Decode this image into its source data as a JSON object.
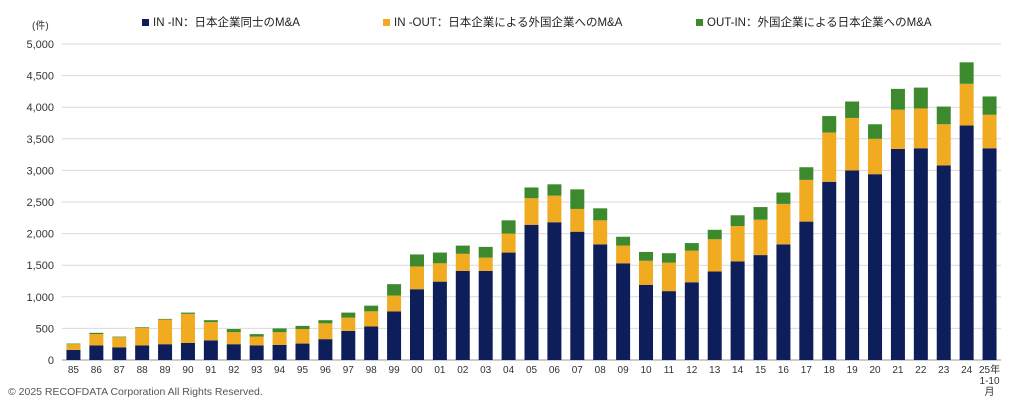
{
  "chart_data": {
    "type": "bar",
    "stacked": true,
    "unit_label": "(件)",
    "categories": [
      "85",
      "86",
      "87",
      "88",
      "89",
      "90",
      "91",
      "92",
      "93",
      "94",
      "95",
      "96",
      "97",
      "98",
      "99",
      "00",
      "01",
      "02",
      "03",
      "04",
      "05",
      "06",
      "07",
      "08",
      "09",
      "10",
      "11",
      "12",
      "13",
      "14",
      "15",
      "16",
      "17",
      "18",
      "19",
      "20",
      "21",
      "22",
      "23",
      "24",
      "25年 1-10 月"
    ],
    "series": [
      {
        "name": "IN -IN：日本企業同士のM&A",
        "color": "#0e1e5b",
        "values": [
          160,
          230,
          200,
          230,
          250,
          270,
          310,
          250,
          230,
          240,
          260,
          330,
          460,
          530,
          770,
          1120,
          1240,
          1410,
          1410,
          1700,
          2140,
          2180,
          2030,
          1830,
          1530,
          1190,
          1090,
          1230,
          1400,
          1560,
          1660,
          1830,
          2190,
          2820,
          3000,
          2940,
          3340,
          3350,
          3080,
          3710,
          3350
        ]
      },
      {
        "name": "IN -OUT：日本企業による外国企業へのM&A",
        "color": "#f0ab21",
        "values": [
          90,
          180,
          160,
          280,
          390,
          460,
          290,
          190,
          140,
          200,
          230,
          250,
          210,
          240,
          250,
          360,
          290,
          270,
          210,
          300,
          420,
          420,
          360,
          380,
          280,
          380,
          450,
          500,
          510,
          560,
          560,
          640,
          660,
          780,
          830,
          560,
          620,
          630,
          650,
          660,
          530
        ]
      },
      {
        "name": "OUT-IN：外国企業による日本企業へのM&A",
        "color": "#3d8a2e",
        "values": [
          10,
          20,
          10,
          10,
          10,
          20,
          30,
          50,
          40,
          60,
          50,
          50,
          80,
          90,
          180,
          190,
          170,
          130,
          170,
          210,
          170,
          180,
          310,
          190,
          140,
          140,
          150,
          120,
          150,
          170,
          200,
          180,
          200,
          260,
          260,
          230,
          330,
          330,
          280,
          340,
          290
        ]
      }
    ],
    "ylim": [
      0,
      5000
    ],
    "yticks": [
      "0",
      "500",
      "1,000",
      "1,500",
      "2,000",
      "2,500",
      "3,000",
      "3,500",
      "4,000",
      "4,500",
      "5,000"
    ],
    "ytick_values": [
      0,
      500,
      1000,
      1500,
      2000,
      2500,
      3000,
      3500,
      4000,
      4500,
      5000
    ],
    "grid": true,
    "legend_position": "top"
  },
  "footer": {
    "copyright": "© 2025 RECOFDATA Corporation All Rights Reserved."
  }
}
